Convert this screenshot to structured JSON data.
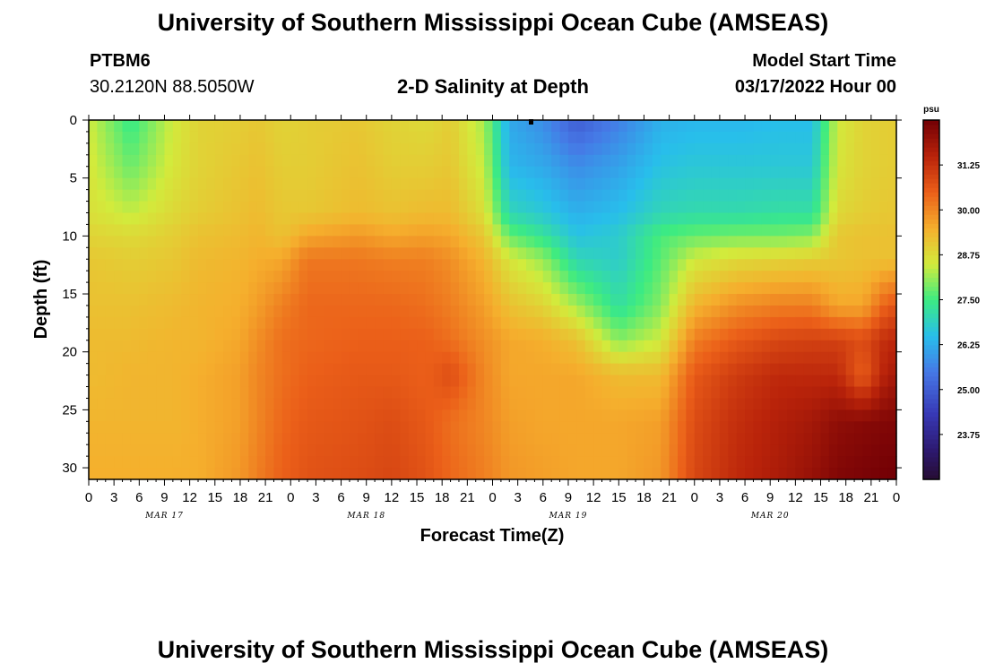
{
  "page": {
    "title_top": "University of Southern Mississippi Ocean Cube (AMSEAS)",
    "title_bottom": "University of Southern Mississippi Ocean Cube (AMSEAS)",
    "station_id": "PTBM6",
    "station_coords": "30.2120N  88.5050W",
    "plot_subtitle": "2-D Salinity at Depth",
    "model_start_label": "Model Start Time",
    "model_start_value": "03/17/2022 Hour 00"
  },
  "chart_data": {
    "type": "heatmap",
    "title": "2-D Salinity at Depth",
    "xlabel": "Forecast Time(Z)",
    "ylabel": "Depth (ft)",
    "x_tick_labels": [
      "0",
      "3",
      "6",
      "9",
      "12",
      "15",
      "18",
      "21",
      "0",
      "3",
      "6",
      "9",
      "12",
      "15",
      "18",
      "21",
      "0",
      "3",
      "6",
      "9",
      "12",
      "15",
      "18",
      "21",
      "0",
      "3",
      "6",
      "9",
      "12",
      "15",
      "18",
      "21",
      "0"
    ],
    "date_labels": [
      "MAR 17",
      "MAR 18",
      "MAR 19",
      "MAR 20"
    ],
    "date_label_hours": [
      9,
      33,
      57,
      81
    ],
    "xlim_hours": [
      0,
      96
    ],
    "y_ticks": [
      0,
      5,
      10,
      15,
      20,
      25,
      30
    ],
    "ylim": [
      0,
      31
    ],
    "colorbar": {
      "unit": "psu",
      "min": 22.5,
      "max": 32.5,
      "ticks": [
        "31.25",
        "30.00",
        "28.75",
        "27.50",
        "26.25",
        "25.00",
        "23.75"
      ],
      "tick_values": [
        31.25,
        30.0,
        28.75,
        27.5,
        26.25,
        25.0,
        23.75
      ]
    },
    "grid_time_hours": [
      0,
      5,
      10,
      13,
      18,
      20,
      23,
      26,
      32,
      36,
      40,
      43,
      47,
      50,
      54,
      58,
      63,
      68,
      72,
      77,
      82,
      86,
      89,
      92,
      95
    ],
    "grid_depth_ft": [
      0,
      4,
      8,
      10,
      12,
      16,
      19,
      22,
      26,
      31
    ],
    "salinity_psu": [
      [
        28.5,
        27.4,
        28.5,
        28.9,
        29.0,
        29.1,
        28.9,
        29.0,
        29.1,
        28.9,
        28.8,
        29.0,
        28.2,
        26.2,
        25.8,
        25.0,
        25.6,
        26.3,
        26.4,
        26.4,
        26.5,
        26.5,
        28.5,
        28.9,
        29.0
      ],
      [
        28.6,
        27.8,
        28.6,
        28.9,
        29.1,
        29.2,
        29.0,
        29.0,
        29.2,
        29.0,
        29.0,
        29.1,
        28.4,
        26.4,
        26.2,
        25.8,
        26.1,
        26.6,
        26.7,
        26.7,
        26.7,
        26.7,
        28.6,
        28.9,
        29.0
      ],
      [
        28.7,
        28.4,
        28.8,
        29.0,
        29.2,
        29.3,
        29.1,
        29.1,
        29.3,
        29.2,
        29.3,
        29.3,
        28.7,
        27.0,
        26.7,
        26.3,
        26.5,
        27.0,
        27.1,
        27.1,
        27.2,
        27.2,
        28.8,
        29.0,
        29.1
      ],
      [
        28.9,
        28.8,
        29.0,
        29.2,
        29.3,
        29.4,
        29.2,
        29.6,
        29.8,
        29.6,
        29.7,
        29.6,
        29.1,
        27.8,
        27.3,
        26.6,
        26.8,
        27.6,
        27.8,
        27.9,
        27.9,
        28.0,
        29.1,
        29.2,
        29.2
      ],
      [
        29.1,
        29.0,
        29.1,
        29.3,
        29.4,
        29.5,
        29.6,
        30.2,
        30.2,
        30.1,
        30.1,
        29.9,
        29.4,
        28.6,
        28.1,
        27.0,
        26.8,
        27.7,
        28.5,
        28.8,
        28.9,
        29.0,
        29.1,
        29.2,
        29.2
      ],
      [
        29.2,
        29.2,
        29.3,
        29.4,
        29.5,
        29.7,
        30.1,
        30.4,
        30.4,
        30.4,
        30.3,
        30.1,
        29.7,
        29.2,
        28.9,
        28.2,
        27.2,
        28.0,
        29.4,
        29.9,
        30.1,
        30.1,
        29.6,
        29.6,
        30.6
      ],
      [
        29.3,
        29.3,
        29.4,
        29.4,
        29.6,
        29.9,
        30.3,
        30.4,
        30.5,
        30.5,
        30.5,
        30.3,
        29.9,
        29.6,
        29.5,
        29.2,
        28.0,
        28.5,
        30.1,
        30.6,
        30.9,
        31.0,
        31.0,
        30.8,
        31.4
      ],
      [
        29.3,
        29.4,
        29.4,
        29.5,
        29.7,
        30.0,
        30.3,
        30.5,
        30.6,
        30.6,
        30.5,
        30.8,
        30.0,
        29.6,
        29.6,
        29.6,
        29.3,
        29.3,
        30.6,
        31.1,
        31.4,
        31.4,
        31.4,
        30.5,
        31.7
      ],
      [
        29.4,
        29.4,
        29.4,
        29.5,
        29.7,
        30.0,
        30.4,
        30.6,
        30.7,
        30.8,
        30.6,
        30.3,
        30.0,
        29.7,
        29.6,
        29.6,
        29.6,
        29.7,
        30.8,
        31.3,
        31.6,
        31.8,
        32.1,
        32.2,
        32.3
      ],
      [
        29.5,
        29.5,
        29.5,
        29.5,
        29.8,
        30.1,
        30.5,
        30.7,
        30.8,
        30.9,
        30.7,
        30.4,
        30.1,
        29.8,
        29.7,
        29.6,
        29.6,
        29.8,
        30.9,
        31.4,
        31.7,
        32.0,
        32.3,
        32.4,
        32.5
      ]
    ]
  }
}
